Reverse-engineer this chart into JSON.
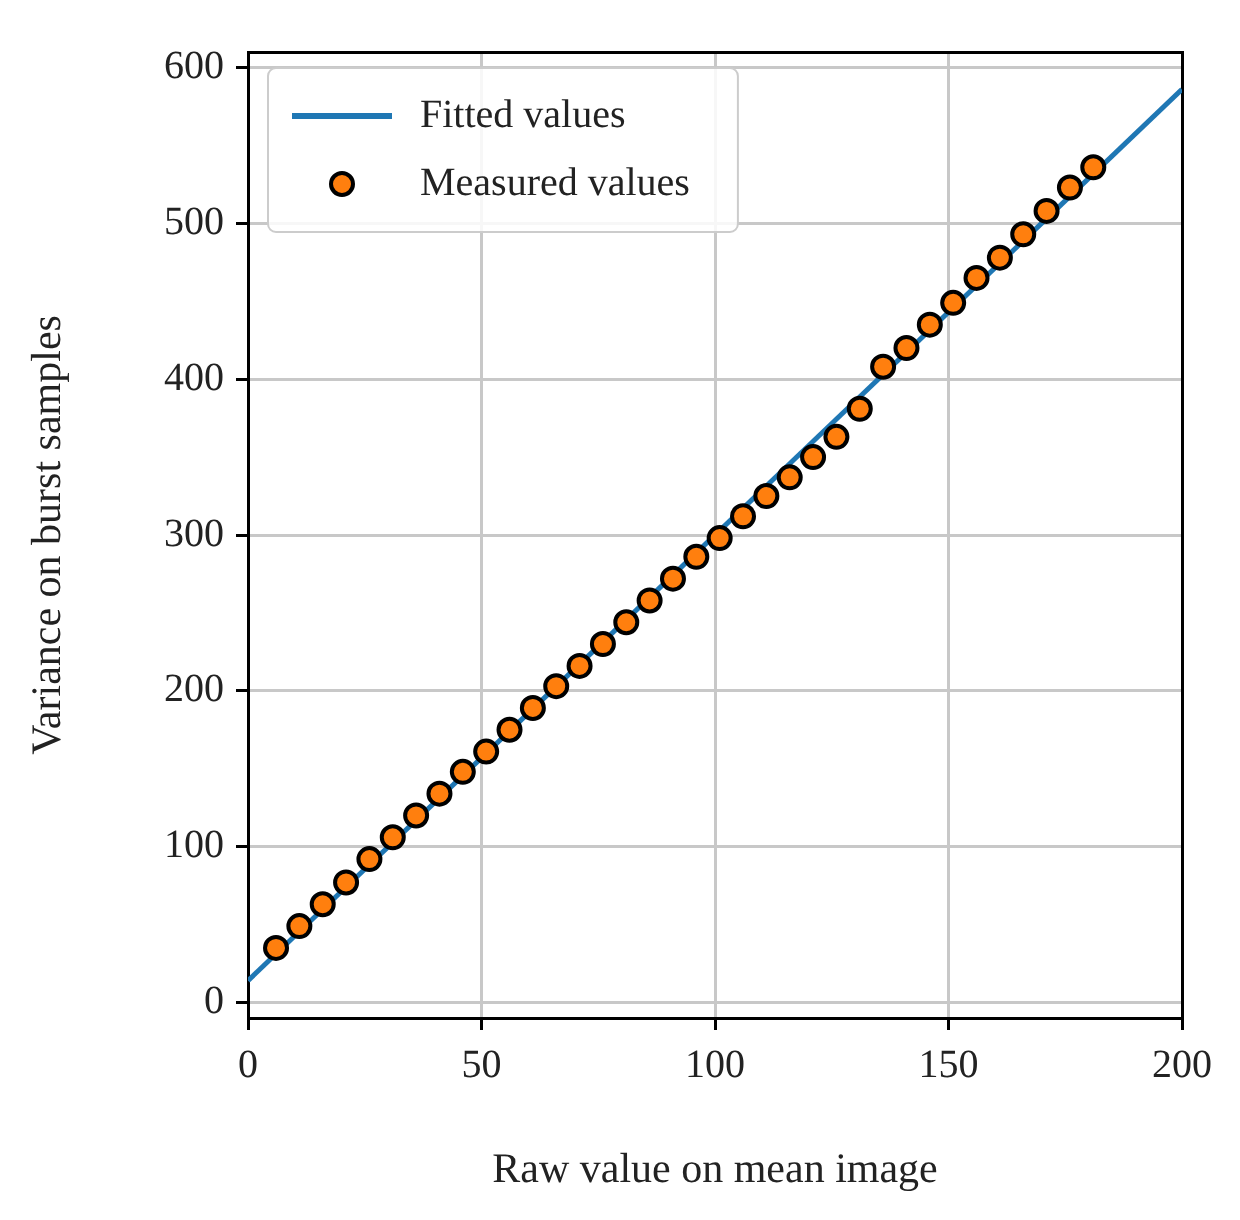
{
  "chart_data": {
    "type": "scatter",
    "xlabel": "Raw value on mean image",
    "ylabel": "Variance on burst samples",
    "xlim": [
      0,
      200
    ],
    "ylim": [
      -10,
      610
    ],
    "xticks": [
      0,
      50,
      100,
      150,
      200
    ],
    "yticks": [
      0,
      100,
      200,
      300,
      400,
      500,
      600
    ],
    "grid": true,
    "legend": "top left",
    "series": [
      {
        "name": "Fitted values",
        "type": "line",
        "color": "#1f77b4",
        "marker": "none",
        "line_style": "solid",
        "x": [
          0,
          200
        ],
        "values": [
          14,
          586
        ]
      },
      {
        "name": "Measured values",
        "color": "#ff7f0e",
        "marker": "circle",
        "x": [
          6,
          11,
          16,
          21,
          26,
          31,
          36,
          41,
          46,
          51,
          56,
          61,
          66,
          71,
          76,
          81,
          86,
          91,
          96,
          101,
          106,
          111,
          116,
          121,
          126,
          131,
          136,
          141,
          146,
          151,
          156,
          161,
          166,
          171,
          176,
          181
        ],
        "values": [
          35,
          49,
          63,
          77,
          92,
          106,
          120,
          134,
          148,
          161,
          175,
          189,
          203,
          216,
          230,
          244,
          258,
          272,
          286,
          298,
          312,
          325,
          337,
          350,
          363,
          381,
          408,
          420,
          435,
          449,
          465,
          478,
          493,
          508,
          523,
          536
        ]
      }
    ]
  }
}
